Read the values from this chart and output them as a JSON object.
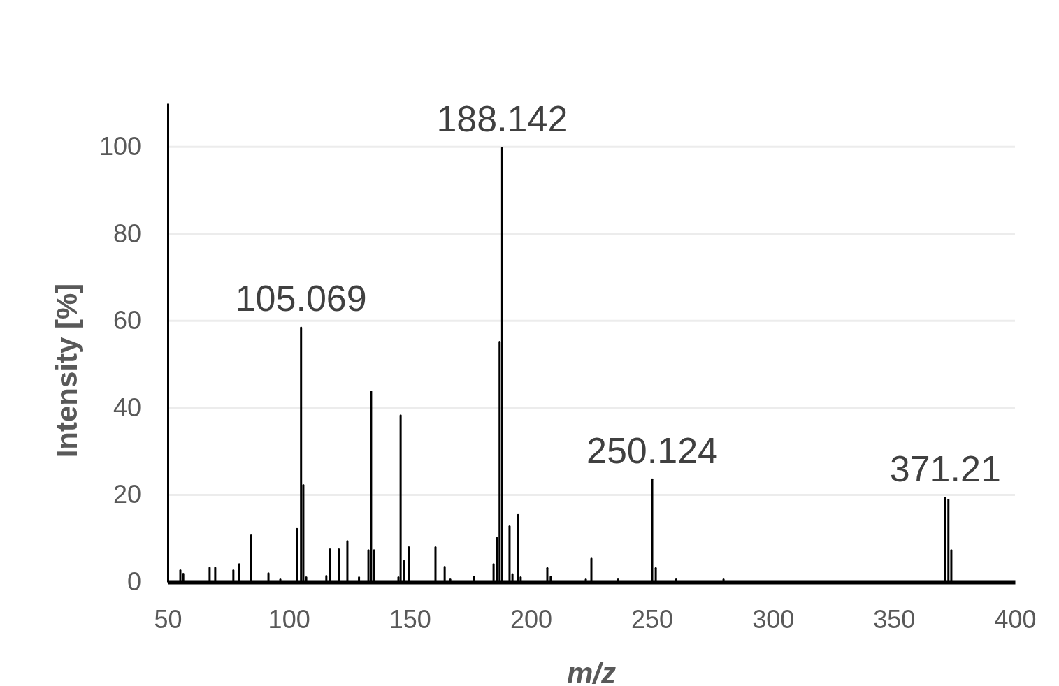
{
  "chart_data": {
    "type": "bar",
    "xlabel": "m/z",
    "ylabel": "Intensity [%]",
    "x": [
      55.2,
      56.4,
      67.3,
      69.6,
      77.1,
      79.5,
      84.4,
      91.6,
      96.5,
      103.4,
      105.069,
      106.0,
      107.2,
      115.5,
      117.0,
      120.7,
      124.2,
      129.0,
      132.9,
      134.0,
      135.2,
      145.3,
      146.2,
      147.6,
      149.6,
      160.6,
      164.4,
      166.7,
      176.5,
      184.6,
      186.0,
      187.1,
      188.142,
      191.2,
      192.4,
      194.7,
      195.8,
      206.8,
      208.2,
      222.7,
      225.0,
      236.0,
      250.124,
      251.6,
      260.0,
      279.6,
      371.21,
      372.5,
      373.7
    ],
    "values": [
      2.9,
      2.1,
      3.5,
      3.5,
      2.9,
      4.3,
      10.9,
      2.2,
      0.8,
      12.4,
      58.7,
      22.5,
      1.3,
      1.6,
      7.7,
      7.7,
      9.6,
      1.3,
      7.5,
      44.0,
      7.5,
      1.3,
      38.5,
      5.0,
      8.2,
      8.2,
      3.7,
      0.8,
      1.4,
      4.3,
      10.3,
      55.4,
      100,
      13.0,
      2.0,
      15.6,
      1.3,
      3.4,
      1.4,
      0.8,
      5.6,
      0.8,
      23.8,
      3.4,
      0.8,
      0.8,
      19.6,
      19.1,
      7.5
    ],
    "color": "#000000",
    "xlim": [
      50,
      400
    ],
    "xticks": [
      50,
      100,
      150,
      200,
      250,
      300,
      350,
      400
    ],
    "ylim": [
      0,
      110
    ],
    "yticks": [
      0,
      20,
      40,
      60,
      80,
      100
    ],
    "grid": "y",
    "annotations": [
      {
        "text": "105.069",
        "x": 105.069,
        "y": 58.7
      },
      {
        "text": "188.142",
        "x": 188.142,
        "y": 100
      },
      {
        "text": "250.124",
        "x": 250.124,
        "y": 23.8
      },
      {
        "text": "371.21",
        "x": 371.21,
        "y": 19.6
      }
    ]
  }
}
